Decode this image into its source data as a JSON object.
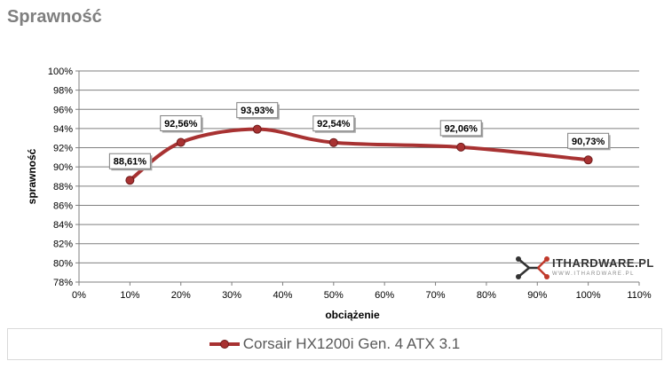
{
  "page": {
    "title": "Sprawność"
  },
  "chart_data": {
    "type": "line",
    "title": "Sprawność",
    "xlabel": "obciążenie",
    "ylabel": "sprawność",
    "xlim": [
      0,
      110
    ],
    "ylim": [
      78,
      100
    ],
    "x_ticks": [
      "0%",
      "10%",
      "20%",
      "30%",
      "40%",
      "50%",
      "60%",
      "70%",
      "80%",
      "90%",
      "100%",
      "110%"
    ],
    "y_ticks": [
      "78%",
      "80%",
      "82%",
      "84%",
      "86%",
      "88%",
      "90%",
      "92%",
      "94%",
      "96%",
      "98%",
      "100%"
    ],
    "grid": "horizontal",
    "legend_position": "bottom",
    "series": [
      {
        "name": "Corsair HX1200i Gen. 4 ATX 3.1",
        "color": "#a83232",
        "x": [
          10,
          20,
          35,
          50,
          75,
          100
        ],
        "y": [
          88.61,
          92.56,
          93.93,
          92.54,
          92.06,
          90.73
        ],
        "labels": [
          "88,61%",
          "92,56%",
          "93,93%",
          "92,54%",
          "92,06%",
          "90,73%"
        ]
      }
    ]
  },
  "logo": {
    "text": "ITHARDWARE.PL",
    "subtext": "WWW.ITHARDWARE.PL",
    "icon": "molecule-logo-icon"
  }
}
